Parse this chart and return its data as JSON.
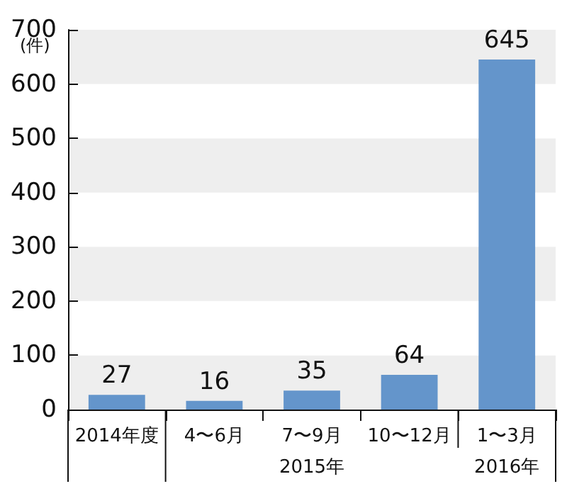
{
  "chart_data": {
    "type": "bar",
    "ylabel": "(件)",
    "categories": [
      "2014年度",
      "4〜6月",
      "7〜9月\n2015年",
      "10〜12月",
      "1〜3月\n2016年"
    ],
    "values": [
      27,
      16,
      35,
      64,
      645
    ],
    "color": "#6495cb",
    "data_labels": true,
    "ylim": [
      0,
      700
    ],
    "yticks": [
      0,
      100,
      200,
      300,
      400,
      500,
      600,
      700
    ]
  }
}
